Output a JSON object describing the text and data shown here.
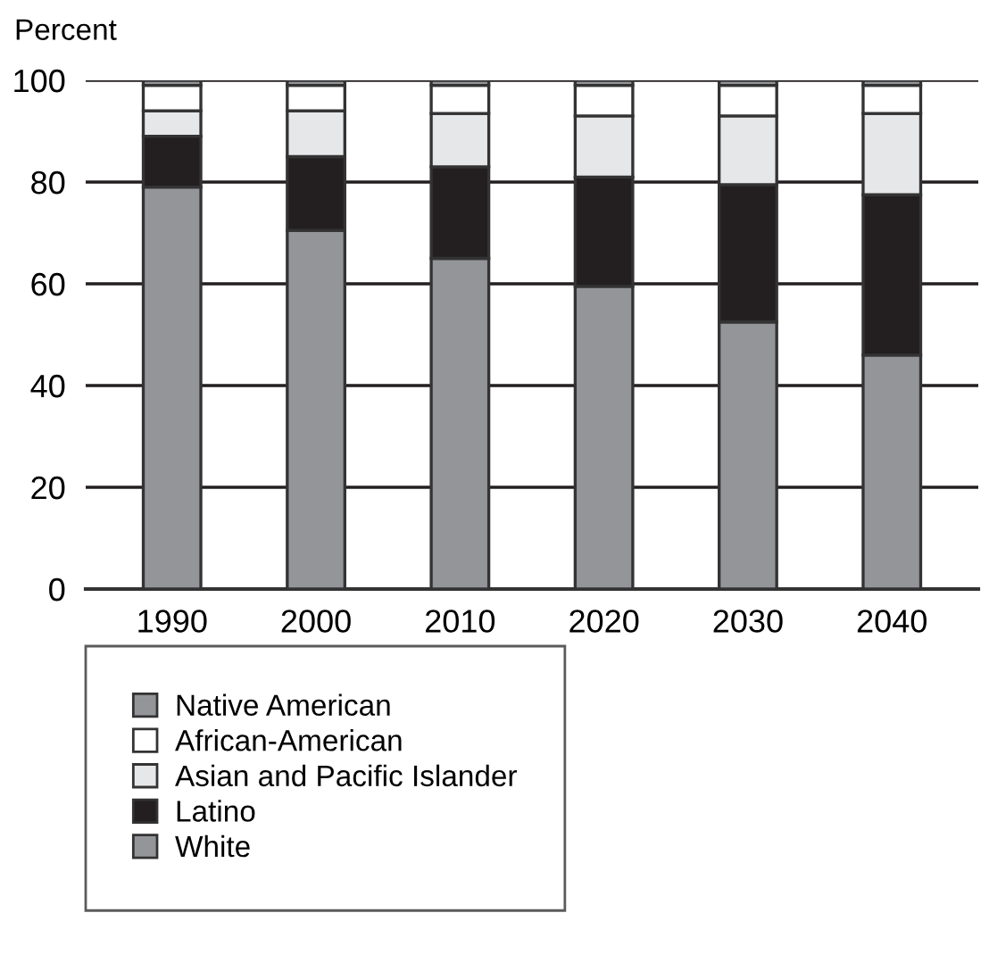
{
  "chart_data": {
    "type": "bar",
    "stacked": true,
    "ylabel": "Percent",
    "categories": [
      "1990",
      "2000",
      "2010",
      "2020",
      "2030",
      "2040"
    ],
    "series": [
      {
        "name": "White",
        "color": "#939598",
        "values": [
          79,
          70.5,
          65,
          59.5,
          52.5,
          46
        ]
      },
      {
        "name": "Latino",
        "color": "#231f20",
        "values": [
          10,
          14.5,
          18,
          21.5,
          27,
          31.5
        ]
      },
      {
        "name": "Asian and Pacific Islander",
        "color": "#e6e7e8",
        "values": [
          5,
          9,
          10.5,
          12,
          13.5,
          16
        ]
      },
      {
        "name": "African-American",
        "color": "#ffffff",
        "values": [
          5,
          5,
          5.5,
          6,
          6,
          5.5
        ]
      },
      {
        "name": "Native American",
        "color": "#939598",
        "values": [
          1,
          1,
          1,
          1,
          1,
          1
        ]
      }
    ],
    "ylim": [
      0,
      100
    ],
    "yticks": [
      0,
      20,
      40,
      60,
      80,
      100
    ],
    "grid": "y",
    "legend": "bottom"
  }
}
